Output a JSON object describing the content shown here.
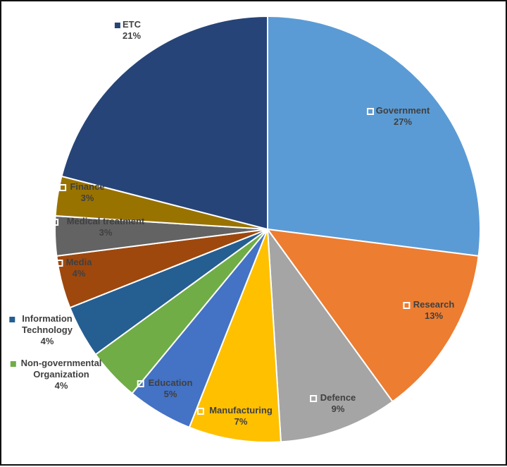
{
  "chart_data": {
    "type": "pie",
    "title": "",
    "start_angle_deg": 0,
    "direction": "clockwise",
    "slices": [
      {
        "name": "Government",
        "value": 27,
        "label": "27%",
        "color": "#5B9BD5",
        "label_color": "#404040"
      },
      {
        "name": "Research",
        "value": 13,
        "label": "13%",
        "color": "#ED7D31",
        "label_color": "#404040"
      },
      {
        "name": "Defence",
        "value": 9,
        "label": "9%",
        "color": "#A5A5A5",
        "label_color": "#404040"
      },
      {
        "name": "Manufacturing",
        "value": 7,
        "label": "7%",
        "color": "#FFC000",
        "label_color": "#404040"
      },
      {
        "name": "Education",
        "value": 5,
        "label": "5%",
        "color": "#4472C4",
        "label_color": "#404040"
      },
      {
        "name": "Non-governmental Organization",
        "value": 4,
        "label": "4%",
        "color": "#70AD47",
        "label_color": "#404040"
      },
      {
        "name": "Information Technology",
        "value": 4,
        "label": "4%",
        "color": "#255E91",
        "label_color": "#404040"
      },
      {
        "name": "Media",
        "value": 4,
        "label": "4%",
        "color": "#9E480E",
        "label_color": "#404040"
      },
      {
        "name": "Medical treatment",
        "value": 3,
        "label": "3%",
        "color": "#636363",
        "label_color": "#404040"
      },
      {
        "name": "Finance",
        "value": 3,
        "label": "3%",
        "color": "#997300",
        "label_color": "#404040"
      },
      {
        "name": "ETC",
        "value": 21,
        "label": "21%",
        "color": "#264478",
        "label_color": "#404040"
      }
    ]
  }
}
